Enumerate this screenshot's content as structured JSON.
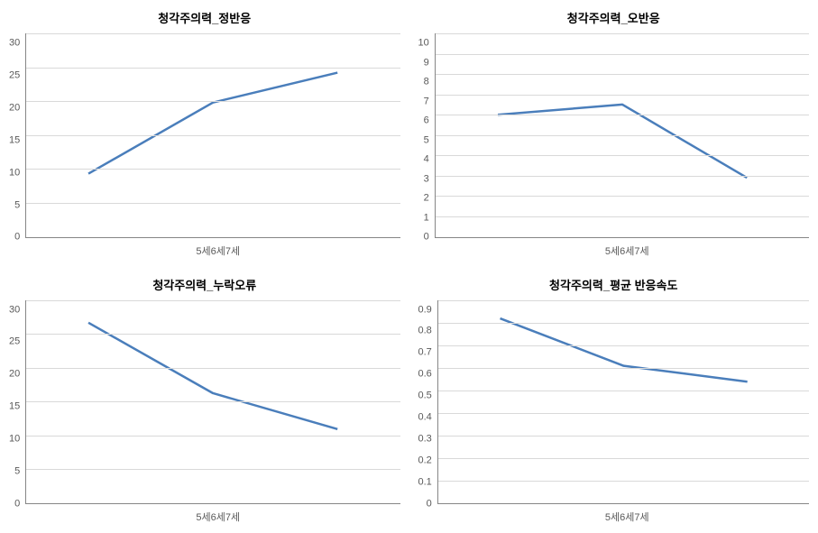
{
  "layout": {
    "rows": 2,
    "cols": 2,
    "background_color": "#ffffff"
  },
  "axis_style": {
    "label_color": "#595959",
    "label_fontsize": 11,
    "grid_color": "#d9d9d9",
    "axis_line_color": "#868686",
    "title_fontsize": 13,
    "title_color": "#000000",
    "title_weight": "bold"
  },
  "series_style": {
    "line_color": "#4a7ebb",
    "line_width": 2.5
  },
  "charts": [
    {
      "id": "chart-top-left",
      "type": "line",
      "title": "청각주의력_정반응",
      "categories": [
        "5세",
        "6세",
        "7세"
      ],
      "values": [
        9.3,
        19.8,
        24.2
      ],
      "ylim": [
        0,
        30
      ],
      "ytick_step": 5
    },
    {
      "id": "chart-top-right",
      "type": "line",
      "title": "청각주의력_오반응",
      "categories": [
        "5세",
        "6세",
        "7세"
      ],
      "values": [
        6.0,
        6.5,
        2.9
      ],
      "ylim": [
        0,
        10
      ],
      "ytick_step": 1
    },
    {
      "id": "chart-bottom-left",
      "type": "line",
      "title": "청각주의력_누락오류",
      "categories": [
        "5세",
        "6세",
        "7세"
      ],
      "values": [
        26.7,
        16.3,
        11.0
      ],
      "ylim": [
        0,
        30
      ],
      "ytick_step": 5
    },
    {
      "id": "chart-bottom-right",
      "type": "line",
      "title": "청각주의력_평균 반응속도",
      "categories": [
        "5세",
        "6세",
        "7세"
      ],
      "values": [
        0.82,
        0.61,
        0.54
      ],
      "ylim": [
        0,
        0.9
      ],
      "ytick_step": 0.1
    }
  ]
}
